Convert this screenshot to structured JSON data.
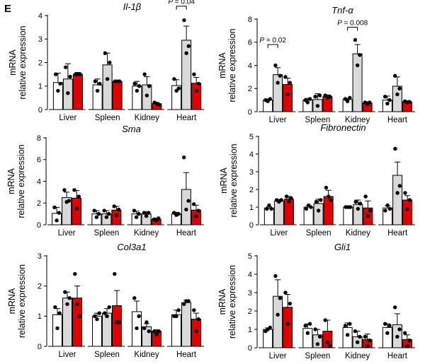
{
  "panel_letter": "E",
  "y_axis_label_top": "mRNA",
  "y_axis_label_bottom": "relative expression",
  "colors": {
    "group1": "#ffffff",
    "group2": "#d9d9d9",
    "group3": "#e00000",
    "stroke": "#000000"
  },
  "chart_data": [
    {
      "type": "bar",
      "title": "Il-1β",
      "categories": [
        "Liver",
        "Spleen",
        "Kidney",
        "Heart"
      ],
      "ylim": [
        0,
        4
      ],
      "yticks": [
        0,
        1,
        2,
        3,
        4
      ],
      "series": [
        {
          "name": "group1",
          "values": [
            1.15,
            1.05,
            1.0,
            1.02
          ],
          "errors": [
            0.4,
            0.25,
            0.2,
            0.25
          ],
          "points": [
            [
              1.5,
              0.8,
              1.1
            ],
            [
              1.2,
              0.8,
              1.1
            ],
            [
              1.1,
              0.8,
              1.0
            ],
            [
              1.3,
              0.8,
              0.9
            ]
          ]
        },
        {
          "name": "group2",
          "values": [
            1.3,
            1.9,
            1.05,
            2.95
          ],
          "errors": [
            0.65,
            0.5,
            0.35,
            0.6
          ],
          "points": [
            [
              1.8,
              0.7,
              1.4
            ],
            [
              2.4,
              1.3,
              2.0
            ],
            [
              1.5,
              0.6,
              1.0
            ],
            [
              3.8,
              2.4,
              2.7
            ]
          ]
        },
        {
          "name": "group3",
          "values": [
            1.5,
            1.2,
            0.25,
            1.12
          ],
          "errors": [
            0.08,
            0.05,
            0.05,
            0.25
          ],
          "points": [
            [
              1.5,
              1.5,
              1.5
            ],
            [
              1.2,
              1.2,
              1.2
            ],
            [
              0.3,
              0.25,
              0.2
            ],
            [
              1.5,
              0.8,
              1.1
            ]
          ]
        }
      ],
      "annotations": [
        {
          "p_label": "P",
          "p_value": "= 0.04",
          "category": "Heart",
          "from_series": 0,
          "to_series": 1,
          "y": 4.4
        }
      ]
    },
    {
      "type": "bar",
      "title": "Tnf-α",
      "categories": [
        "Liver",
        "Spleen",
        "Kidney",
        "Heart"
      ],
      "ylim": [
        0,
        8
      ],
      "yticks": [
        0,
        2,
        4,
        6,
        8
      ],
      "series": [
        {
          "name": "group1",
          "values": [
            1.0,
            1.0,
            1.05,
            1.0
          ],
          "errors": [
            0.1,
            0.15,
            0.1,
            0.35
          ],
          "points": [
            [
              1.0,
              0.9,
              1.1
            ],
            [
              1.0,
              0.8,
              1.1
            ],
            [
              1.1,
              0.9,
              1.2
            ],
            [
              1.3,
              0.7,
              1.0
            ]
          ]
        },
        {
          "name": "group2",
          "values": [
            3.2,
            1.05,
            5.0,
            2.2
          ],
          "errors": [
            0.6,
            0.5,
            0.8,
            0.8
          ],
          "points": [
            [
              4.0,
              2.5,
              3.1
            ],
            [
              1.3,
              0.5,
              1.4
            ],
            [
              6.2,
              4.0,
              4.9
            ],
            [
              3.1,
              1.5,
              2.0
            ]
          ]
        },
        {
          "name": "group3",
          "values": [
            2.35,
            1.3,
            0.75,
            0.85
          ],
          "errors": [
            0.55,
            0.15,
            0.1,
            0.1
          ],
          "points": [
            [
              3.0,
              1.5,
              2.5
            ],
            [
              1.4,
              1.2,
              1.3
            ],
            [
              0.8,
              0.65,
              0.8
            ],
            [
              0.9,
              0.8,
              0.85
            ]
          ]
        }
      ],
      "annotations": [
        {
          "p_label": "P",
          "p_value": "= 0.02",
          "category": "Liver",
          "from_series": 0,
          "to_series": 1,
          "y": 5.8
        },
        {
          "p_label": "P",
          "p_value": "= 0.008",
          "category": "Kidney",
          "from_series": 0,
          "to_series": 1,
          "y": 7.3
        }
      ]
    },
    {
      "type": "bar",
      "title": "Sma",
      "categories": [
        "Liver",
        "Spleen",
        "Kidney",
        "Heart"
      ],
      "ylim": [
        0,
        8
      ],
      "yticks": [
        0,
        2,
        4,
        6,
        8
      ],
      "series": [
        {
          "name": "group1",
          "values": [
            1.05,
            1.0,
            1.0,
            1.0
          ],
          "errors": [
            0.55,
            0.3,
            0.25,
            0.15
          ],
          "points": [
            [
              1.6,
              0.4,
              1.1
            ],
            [
              1.3,
              0.7,
              1.0
            ],
            [
              1.3,
              0.7,
              1.0
            ],
            [
              1.1,
              0.9,
              1.0
            ]
          ]
        },
        {
          "name": "group2",
          "values": [
            2.5,
            1.0,
            1.0,
            3.25
          ],
          "errors": [
            0.5,
            0.3,
            0.2,
            1.55
          ],
          "points": [
            [
              3.2,
              2.1,
              2.2
            ],
            [
              1.3,
              0.7,
              1.0
            ],
            [
              1.1,
              0.8,
              1.1
            ],
            [
              6.2,
              1.4,
              2.2
            ]
          ]
        },
        {
          "name": "group3",
          "values": [
            2.45,
            1.35,
            0.5,
            1.35
          ],
          "errors": [
            0.7,
            0.35,
            0.1,
            0.45
          ],
          "points": [
            [
              3.2,
              1.5,
              2.6
            ],
            [
              1.7,
              0.9,
              1.4
            ],
            [
              0.5,
              0.4,
              0.6
            ],
            [
              1.9,
              0.8,
              1.3
            ]
          ]
        }
      ],
      "annotations": []
    },
    {
      "type": "bar",
      "title": "Fibronectin",
      "categories": [
        "Liver",
        "Spleen",
        "Kidney",
        "Heart"
      ],
      "ylim": [
        0,
        5
      ],
      "yticks": [
        0,
        1,
        2,
        3,
        4,
        5
      ],
      "series": [
        {
          "name": "group1",
          "values": [
            0.95,
            1.0,
            1.0,
            0.95
          ],
          "errors": [
            0.08,
            0.08,
            0.05,
            0.12
          ],
          "points": [
            [
              0.9,
              1.1,
              0.9
            ],
            [
              0.9,
              1.1,
              1.0
            ],
            [
              1.0,
              1.0,
              1.0
            ],
            [
              0.8,
              1.1,
              0.9
            ]
          ]
        },
        {
          "name": "group2",
          "values": [
            1.35,
            1.2,
            1.15,
            2.8
          ],
          "errors": [
            0.08,
            0.25,
            0.25,
            0.75
          ],
          "points": [
            [
              1.4,
              1.3,
              1.4
            ],
            [
              1.3,
              0.8,
              1.4
            ],
            [
              1.3,
              0.9,
              1.2
            ],
            [
              4.3,
              1.8,
              2.2
            ]
          ]
        },
        {
          "name": "group3",
          "values": [
            1.45,
            1.6,
            0.95,
            1.4
          ],
          "errors": [
            0.15,
            0.35,
            0.4,
            0.25
          ],
          "points": [
            [
              1.6,
              1.3,
              1.5
            ],
            [
              2.1,
              1.6,
              1.4
            ],
            [
              1.6,
              0.5,
              0.8
            ],
            [
              1.8,
              0.9,
              1.4
            ]
          ]
        }
      ],
      "annotations": []
    },
    {
      "type": "bar",
      "title": "Col3a1",
      "categories": [
        "Liver",
        "Spleen",
        "Kidney",
        "Heart"
      ],
      "ylim": [
        0,
        3
      ],
      "yticks": [
        0,
        1,
        2,
        3
      ],
      "series": [
        {
          "name": "group1",
          "values": [
            1.05,
            1.0,
            1.15,
            1.05
          ],
          "errors": [
            0.2,
            0.1,
            0.35,
            0.15
          ],
          "points": [
            [
              1.3,
              0.6,
              1.1
            ],
            [
              1.0,
              0.9,
              1.1
            ],
            [
              1.6,
              0.6,
              1.0
            ],
            [
              1.0,
              1.0,
              1.2
            ]
          ]
        },
        {
          "name": "group2",
          "values": [
            1.6,
            1.1,
            0.65,
            1.45
          ],
          "errors": [
            0.2,
            0.15,
            0.1,
            0.08
          ],
          "points": [
            [
              1.8,
              1.4,
              1.6
            ],
            [
              1.1,
              1.0,
              1.3
            ],
            [
              0.6,
              0.8,
              0.5
            ],
            [
              1.4,
              1.5,
              1.5
            ]
          ]
        },
        {
          "name": "group3",
          "values": [
            1.6,
            1.35,
            0.5,
            0.9
          ],
          "errors": [
            0.4,
            0.5,
            0.05,
            0.2
          ],
          "points": [
            [
              2.4,
              1.4,
              1.0
            ],
            [
              2.4,
              0.8,
              0.8
            ],
            [
              0.5,
              0.4,
              0.5
            ],
            [
              1.2,
              0.5,
              0.9
            ]
          ]
        }
      ],
      "annotations": []
    },
    {
      "type": "bar",
      "title": "Gli1",
      "categories": [
        "Liver",
        "Spleen",
        "Kidney",
        "Heart"
      ],
      "ylim": [
        0,
        5
      ],
      "yticks": [
        0,
        1,
        2,
        3,
        4,
        5
      ],
      "series": [
        {
          "name": "group1",
          "values": [
            1.0,
            1.05,
            1.1,
            1.1
          ],
          "errors": [
            0.08,
            0.25,
            0.25,
            0.2
          ],
          "points": [
            [
              0.9,
              1.0,
              1.1
            ],
            [
              1.2,
              0.8,
              1.3
            ],
            [
              1.2,
              0.7,
              1.3
            ],
            [
              1.3,
              0.8,
              1.2
            ]
          ]
        },
        {
          "name": "group2",
          "values": [
            2.8,
            0.7,
            0.6,
            1.25
          ],
          "errors": [
            0.9,
            0.3,
            0.3,
            0.6
          ],
          "points": [
            [
              3.9,
              1.8,
              2.7
            ],
            [
              1.0,
              0.2,
              0.6
            ],
            [
              0.9,
              0.3,
              0.6
            ],
            [
              2.2,
              0.6,
              1.0
            ]
          ]
        },
        {
          "name": "group3",
          "values": [
            2.2,
            0.9,
            0.45,
            0.45
          ],
          "errors": [
            0.7,
            0.6,
            0.3,
            0.25
          ],
          "points": [
            [
              3.0,
              1.3,
              2.4
            ],
            [
              1.5,
              0.3,
              0.1
            ],
            [
              0.6,
              0.1,
              0.4
            ],
            [
              0.8,
              0.1,
              0.4
            ]
          ]
        }
      ],
      "annotations": []
    }
  ]
}
